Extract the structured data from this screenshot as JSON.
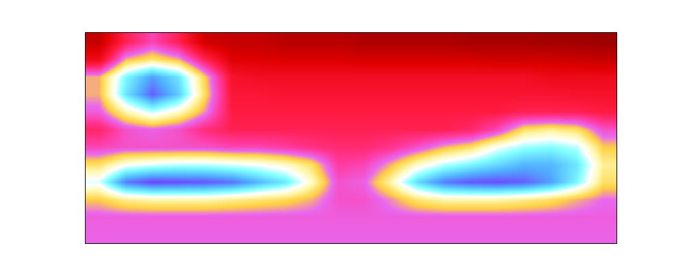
{
  "chart_data": {
    "type": "heatmap",
    "tick_labels": false,
    "grid": false,
    "color_range": [
      0,
      1
    ],
    "cells": [
      [
        0.1,
        0.3,
        0.4,
        0.3,
        0.12,
        0.1,
        0.1,
        0.08,
        0.08,
        0.08,
        0.06,
        0.06,
        0.06,
        0.06,
        0.05,
        0.05,
        0.05,
        0.04,
        0.04,
        0.03
      ],
      [
        0.2,
        0.5,
        0.56,
        0.5,
        0.3,
        0.15,
        0.15,
        0.14,
        0.14,
        0.14,
        0.13,
        0.13,
        0.13,
        0.13,
        0.13,
        0.12,
        0.12,
        0.12,
        0.11,
        0.1
      ],
      [
        0.5,
        0.75,
        0.88,
        0.78,
        0.52,
        0.24,
        0.22,
        0.22,
        0.22,
        0.22,
        0.22,
        0.22,
        0.22,
        0.22,
        0.22,
        0.22,
        0.22,
        0.2,
        0.2,
        0.2
      ],
      [
        0.5,
        0.78,
        0.95,
        0.82,
        0.54,
        0.26,
        0.26,
        0.25,
        0.25,
        0.25,
        0.25,
        0.25,
        0.25,
        0.25,
        0.25,
        0.25,
        0.25,
        0.25,
        0.24,
        0.24
      ],
      [
        0.44,
        0.6,
        0.7,
        0.62,
        0.48,
        0.28,
        0.28,
        0.28,
        0.28,
        0.28,
        0.28,
        0.28,
        0.28,
        0.28,
        0.28,
        0.28,
        0.3,
        0.3,
        0.3,
        0.28
      ],
      [
        0.32,
        0.42,
        0.45,
        0.42,
        0.34,
        0.3,
        0.3,
        0.3,
        0.3,
        0.3,
        0.3,
        0.3,
        0.3,
        0.3,
        0.32,
        0.4,
        0.55,
        0.58,
        0.55,
        0.42
      ],
      [
        0.4,
        0.42,
        0.42,
        0.42,
        0.42,
        0.4,
        0.4,
        0.38,
        0.35,
        0.33,
        0.33,
        0.36,
        0.42,
        0.5,
        0.55,
        0.66,
        0.72,
        0.74,
        0.7,
        0.52
      ],
      [
        0.55,
        0.65,
        0.68,
        0.7,
        0.7,
        0.68,
        0.66,
        0.62,
        0.55,
        0.38,
        0.4,
        0.5,
        0.62,
        0.7,
        0.75,
        0.8,
        0.85,
        0.85,
        0.78,
        0.58
      ],
      [
        0.68,
        0.92,
        0.98,
        0.97,
        0.96,
        0.93,
        0.85,
        0.78,
        0.62,
        0.42,
        0.45,
        0.6,
        0.8,
        0.92,
        0.96,
        0.97,
        0.95,
        0.88,
        0.75,
        0.55
      ],
      [
        0.52,
        0.58,
        0.6,
        0.6,
        0.6,
        0.58,
        0.56,
        0.54,
        0.5,
        0.42,
        0.42,
        0.48,
        0.56,
        0.6,
        0.6,
        0.6,
        0.58,
        0.55,
        0.5,
        0.46
      ],
      [
        0.44,
        0.44,
        0.44,
        0.44,
        0.44,
        0.44,
        0.44,
        0.44,
        0.44,
        0.44,
        0.44,
        0.44,
        0.44,
        0.44,
        0.44,
        0.44,
        0.44,
        0.44,
        0.44,
        0.44
      ],
      [
        0.45,
        0.45,
        0.45,
        0.45,
        0.45,
        0.45,
        0.45,
        0.45,
        0.45,
        0.45,
        0.45,
        0.45,
        0.45,
        0.45,
        0.45,
        0.45,
        0.45,
        0.45,
        0.45,
        0.45
      ]
    ]
  }
}
